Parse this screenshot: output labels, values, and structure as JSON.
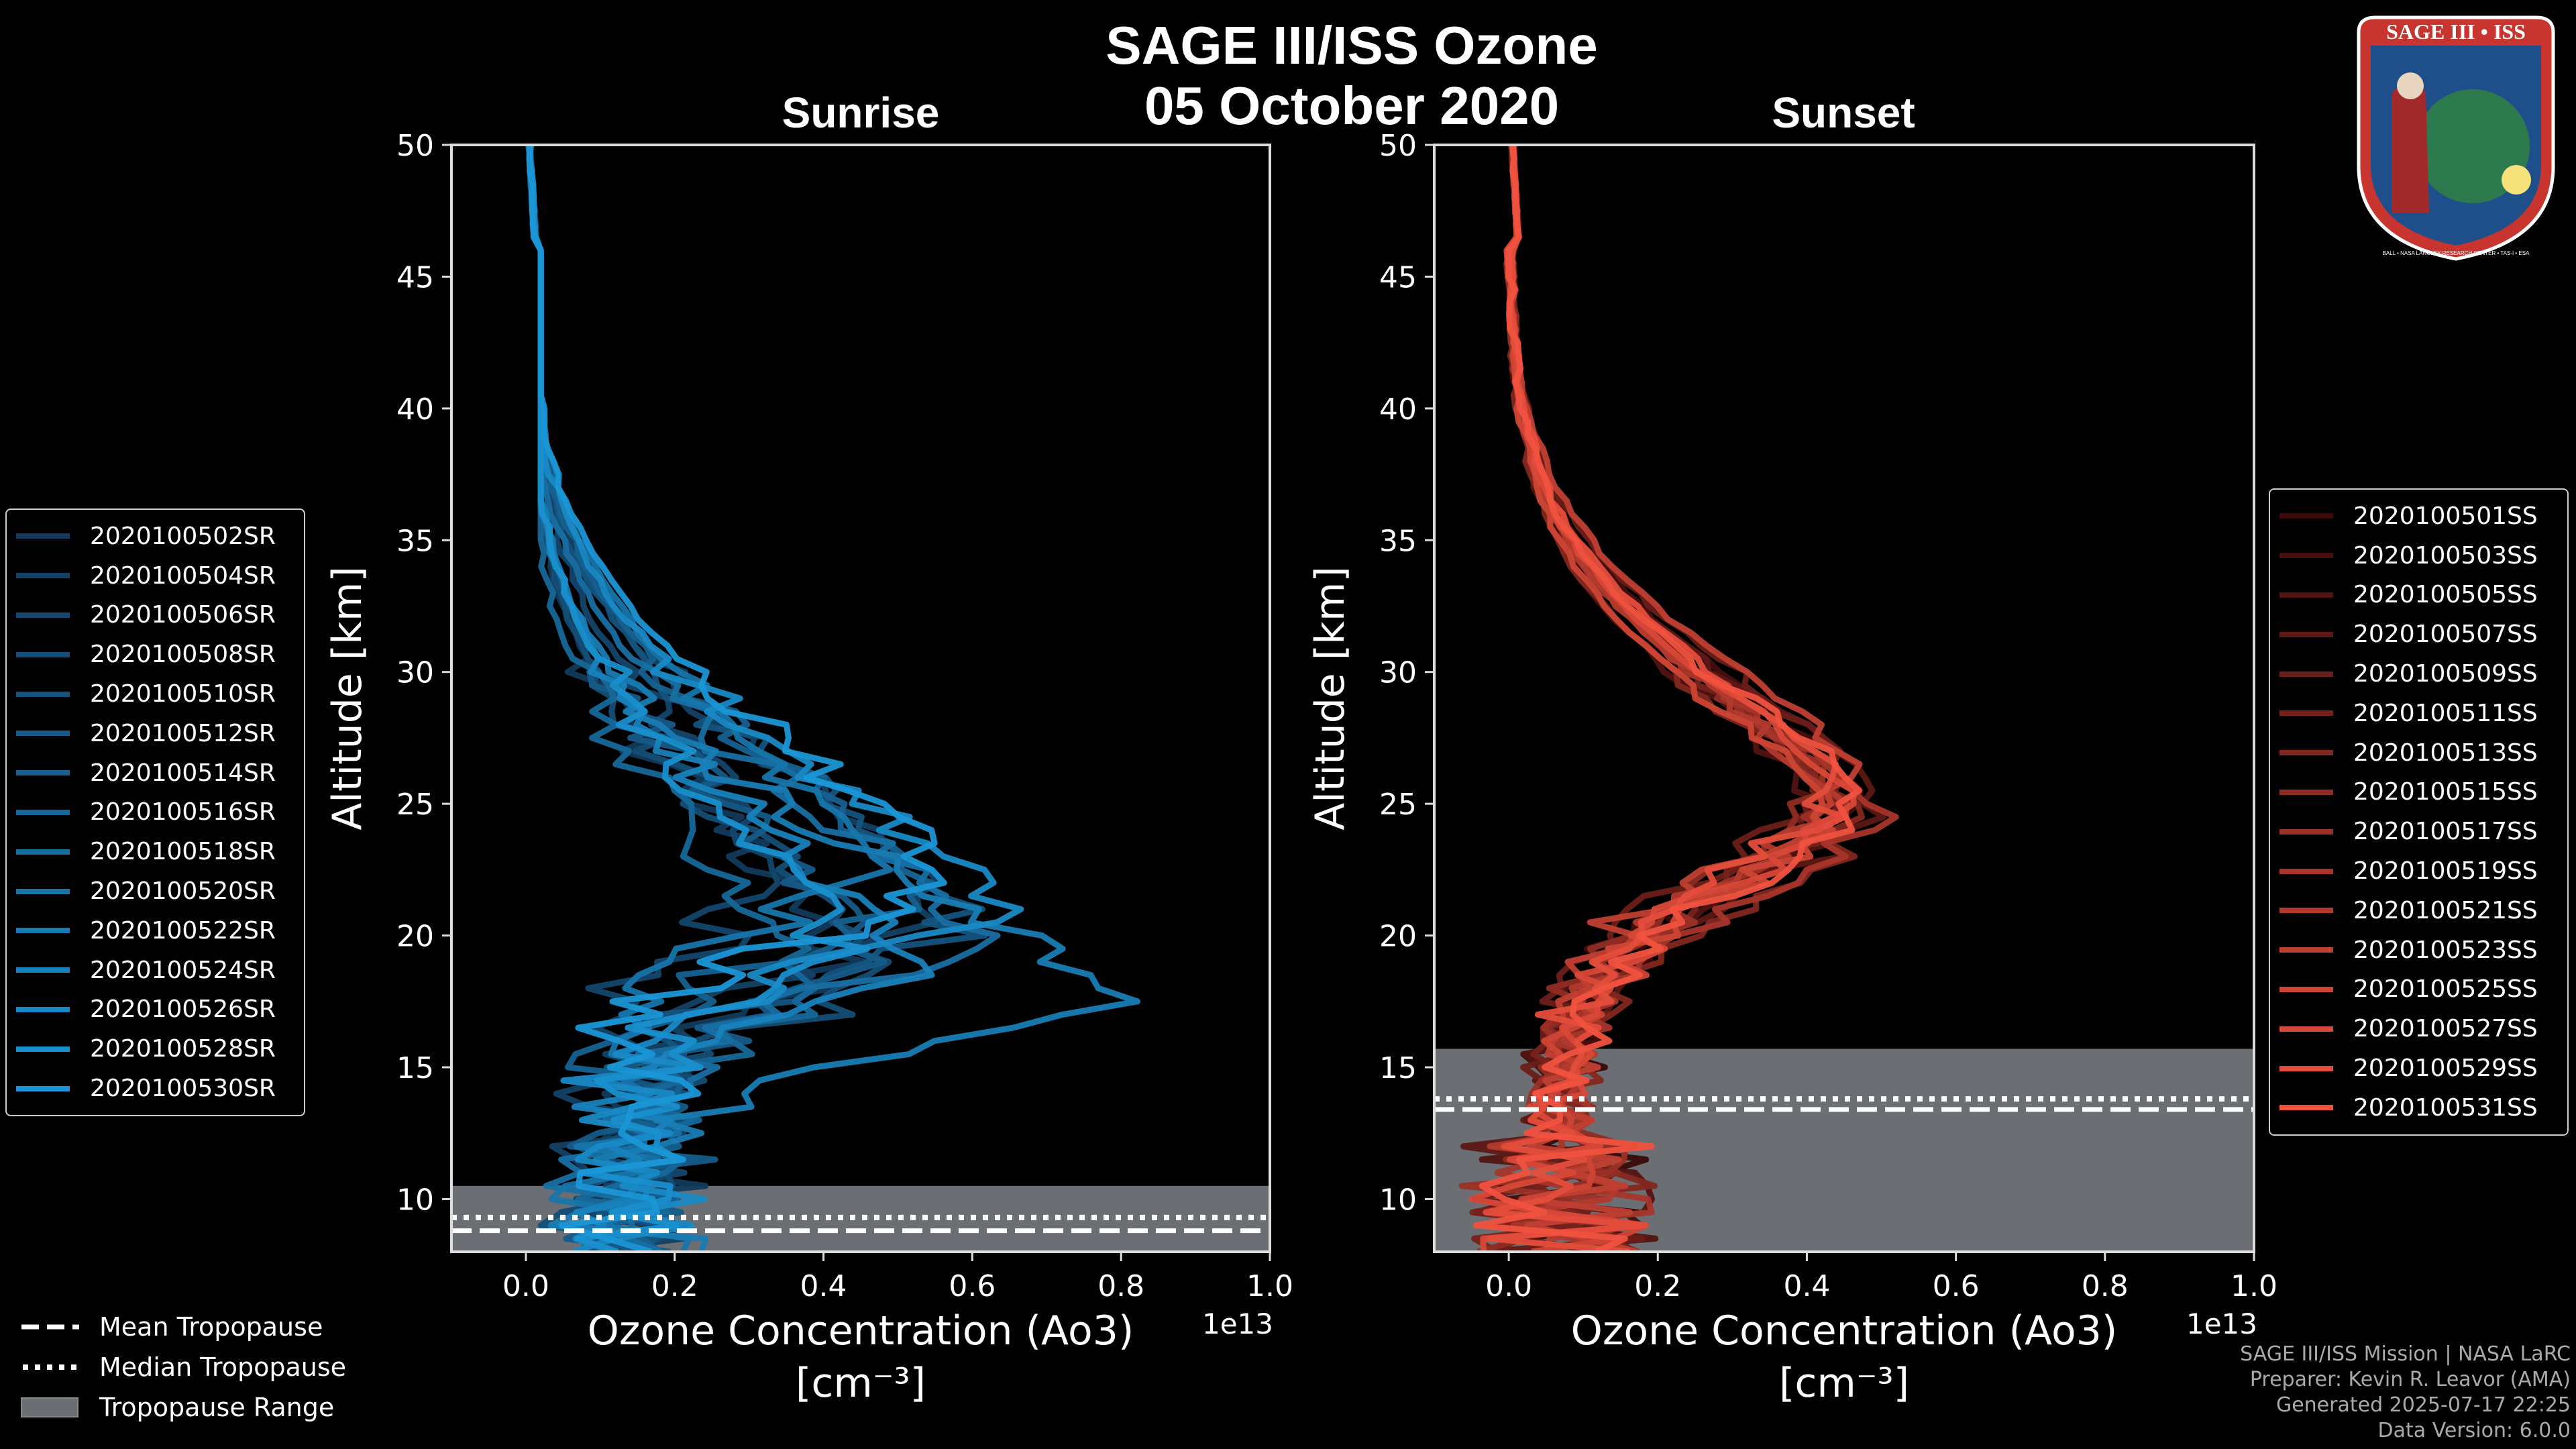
{
  "title": {
    "line1": "SAGE III/ISS Ozone",
    "line2": "05 October 2020"
  },
  "colors": {
    "background": "#000000",
    "sunrise": "#1a96d6",
    "sunset": "#f0523f",
    "tropopause": "#6b6e72"
  },
  "chart_data": [
    {
      "type": "line",
      "title": "Sunrise",
      "xlabel": "Ozone Concentration (Ao3)",
      "xunits": "[cm⁻³]",
      "ylabel": "Altitude [km]",
      "xlim": [
        -0.1,
        1.0
      ],
      "ylim": [
        8,
        50
      ],
      "x_multiplier": "1e13",
      "xticks": [
        "0.0",
        "0.2",
        "0.4",
        "0.6",
        "0.8",
        "1.0"
      ],
      "yticks": [
        "10",
        "15",
        "20",
        "25",
        "30",
        "35",
        "40",
        "45",
        "50"
      ],
      "tropopause": {
        "mean": 8.8,
        "median": 9.3,
        "range": [
          8.0,
          10.5
        ]
      },
      "series_names": [
        "2020100502SR",
        "2020100504SR",
        "2020100506SR",
        "2020100508SR",
        "2020100510SR",
        "2020100512SR",
        "2020100514SR",
        "2020100516SR",
        "2020100518SR",
        "2020100520SR",
        "2020100522SR",
        "2020100524SR",
        "2020100526SR",
        "2020100528SR",
        "2020100530SR"
      ],
      "altitudes": [
        50,
        46,
        42,
        38,
        35,
        32,
        30,
        28,
        26,
        24,
        22,
        20,
        18,
        17.5,
        16,
        14,
        12,
        10,
        9
      ],
      "peak_values": [
        0.42,
        0.55,
        0.33,
        0.48,
        0.6,
        0.44,
        0.52,
        0.38,
        0.58,
        0.46,
        0.77,
        0.5,
        0.62,
        0.4,
        0.56
      ],
      "peak_altitudes": [
        19,
        21,
        22,
        18.5,
        20.5,
        19.5,
        21.5,
        18,
        20,
        22.5,
        17.5,
        19,
        21,
        20,
        22
      ]
    },
    {
      "type": "line",
      "title": "Sunset",
      "xlabel": "Ozone Concentration (Ao3)",
      "xunits": "[cm⁻³]",
      "ylabel": "Altitude [km]",
      "xlim": [
        -0.1,
        1.0
      ],
      "ylim": [
        8,
        50
      ],
      "x_multiplier": "1e13",
      "xticks": [
        "0.0",
        "0.2",
        "0.4",
        "0.6",
        "0.8",
        "1.0"
      ],
      "yticks": [
        "10",
        "15",
        "20",
        "25",
        "30",
        "35",
        "40",
        "45",
        "50"
      ],
      "tropopause": {
        "mean": 13.4,
        "median": 13.8,
        "range": [
          8.0,
          15.7
        ]
      },
      "series_names": [
        "2020100501SS",
        "2020100503SS",
        "2020100505SS",
        "2020100507SS",
        "2020100509SS",
        "2020100511SS",
        "2020100513SS",
        "2020100515SS",
        "2020100517SS",
        "2020100519SS",
        "2020100521SS",
        "2020100523SS",
        "2020100525SS",
        "2020100527SS",
        "2020100529SS",
        "2020100531SS"
      ],
      "peak_values": [
        0.44,
        0.46,
        0.42,
        0.5,
        0.45,
        0.43,
        0.47,
        0.41,
        0.44,
        0.48,
        0.42,
        0.46,
        0.43,
        0.45,
        0.44,
        0.47
      ],
      "peak_altitudes": [
        25,
        25.5,
        24.5,
        25,
        26,
        25,
        24,
        25.5,
        25,
        24.5,
        25,
        26,
        24.5,
        25,
        25.5,
        25
      ]
    }
  ],
  "bottom_legend": {
    "mean": "Mean Tropopause",
    "median": "Median Tropopause",
    "range": "Tropopause Range"
  },
  "credits": [
    "SAGE III/ISS Mission | NASA LaRC",
    "Preparer: Kevin R. Leavor (AMA)",
    "Generated 2025-07-17 22:25",
    "Data Version: 6.0.0"
  ],
  "logo": {
    "name": "SAGE III • ISS",
    "ring_text": "BALL • NASA LANGLEY RESEARCH CENTER • TAS-I • ESA"
  }
}
